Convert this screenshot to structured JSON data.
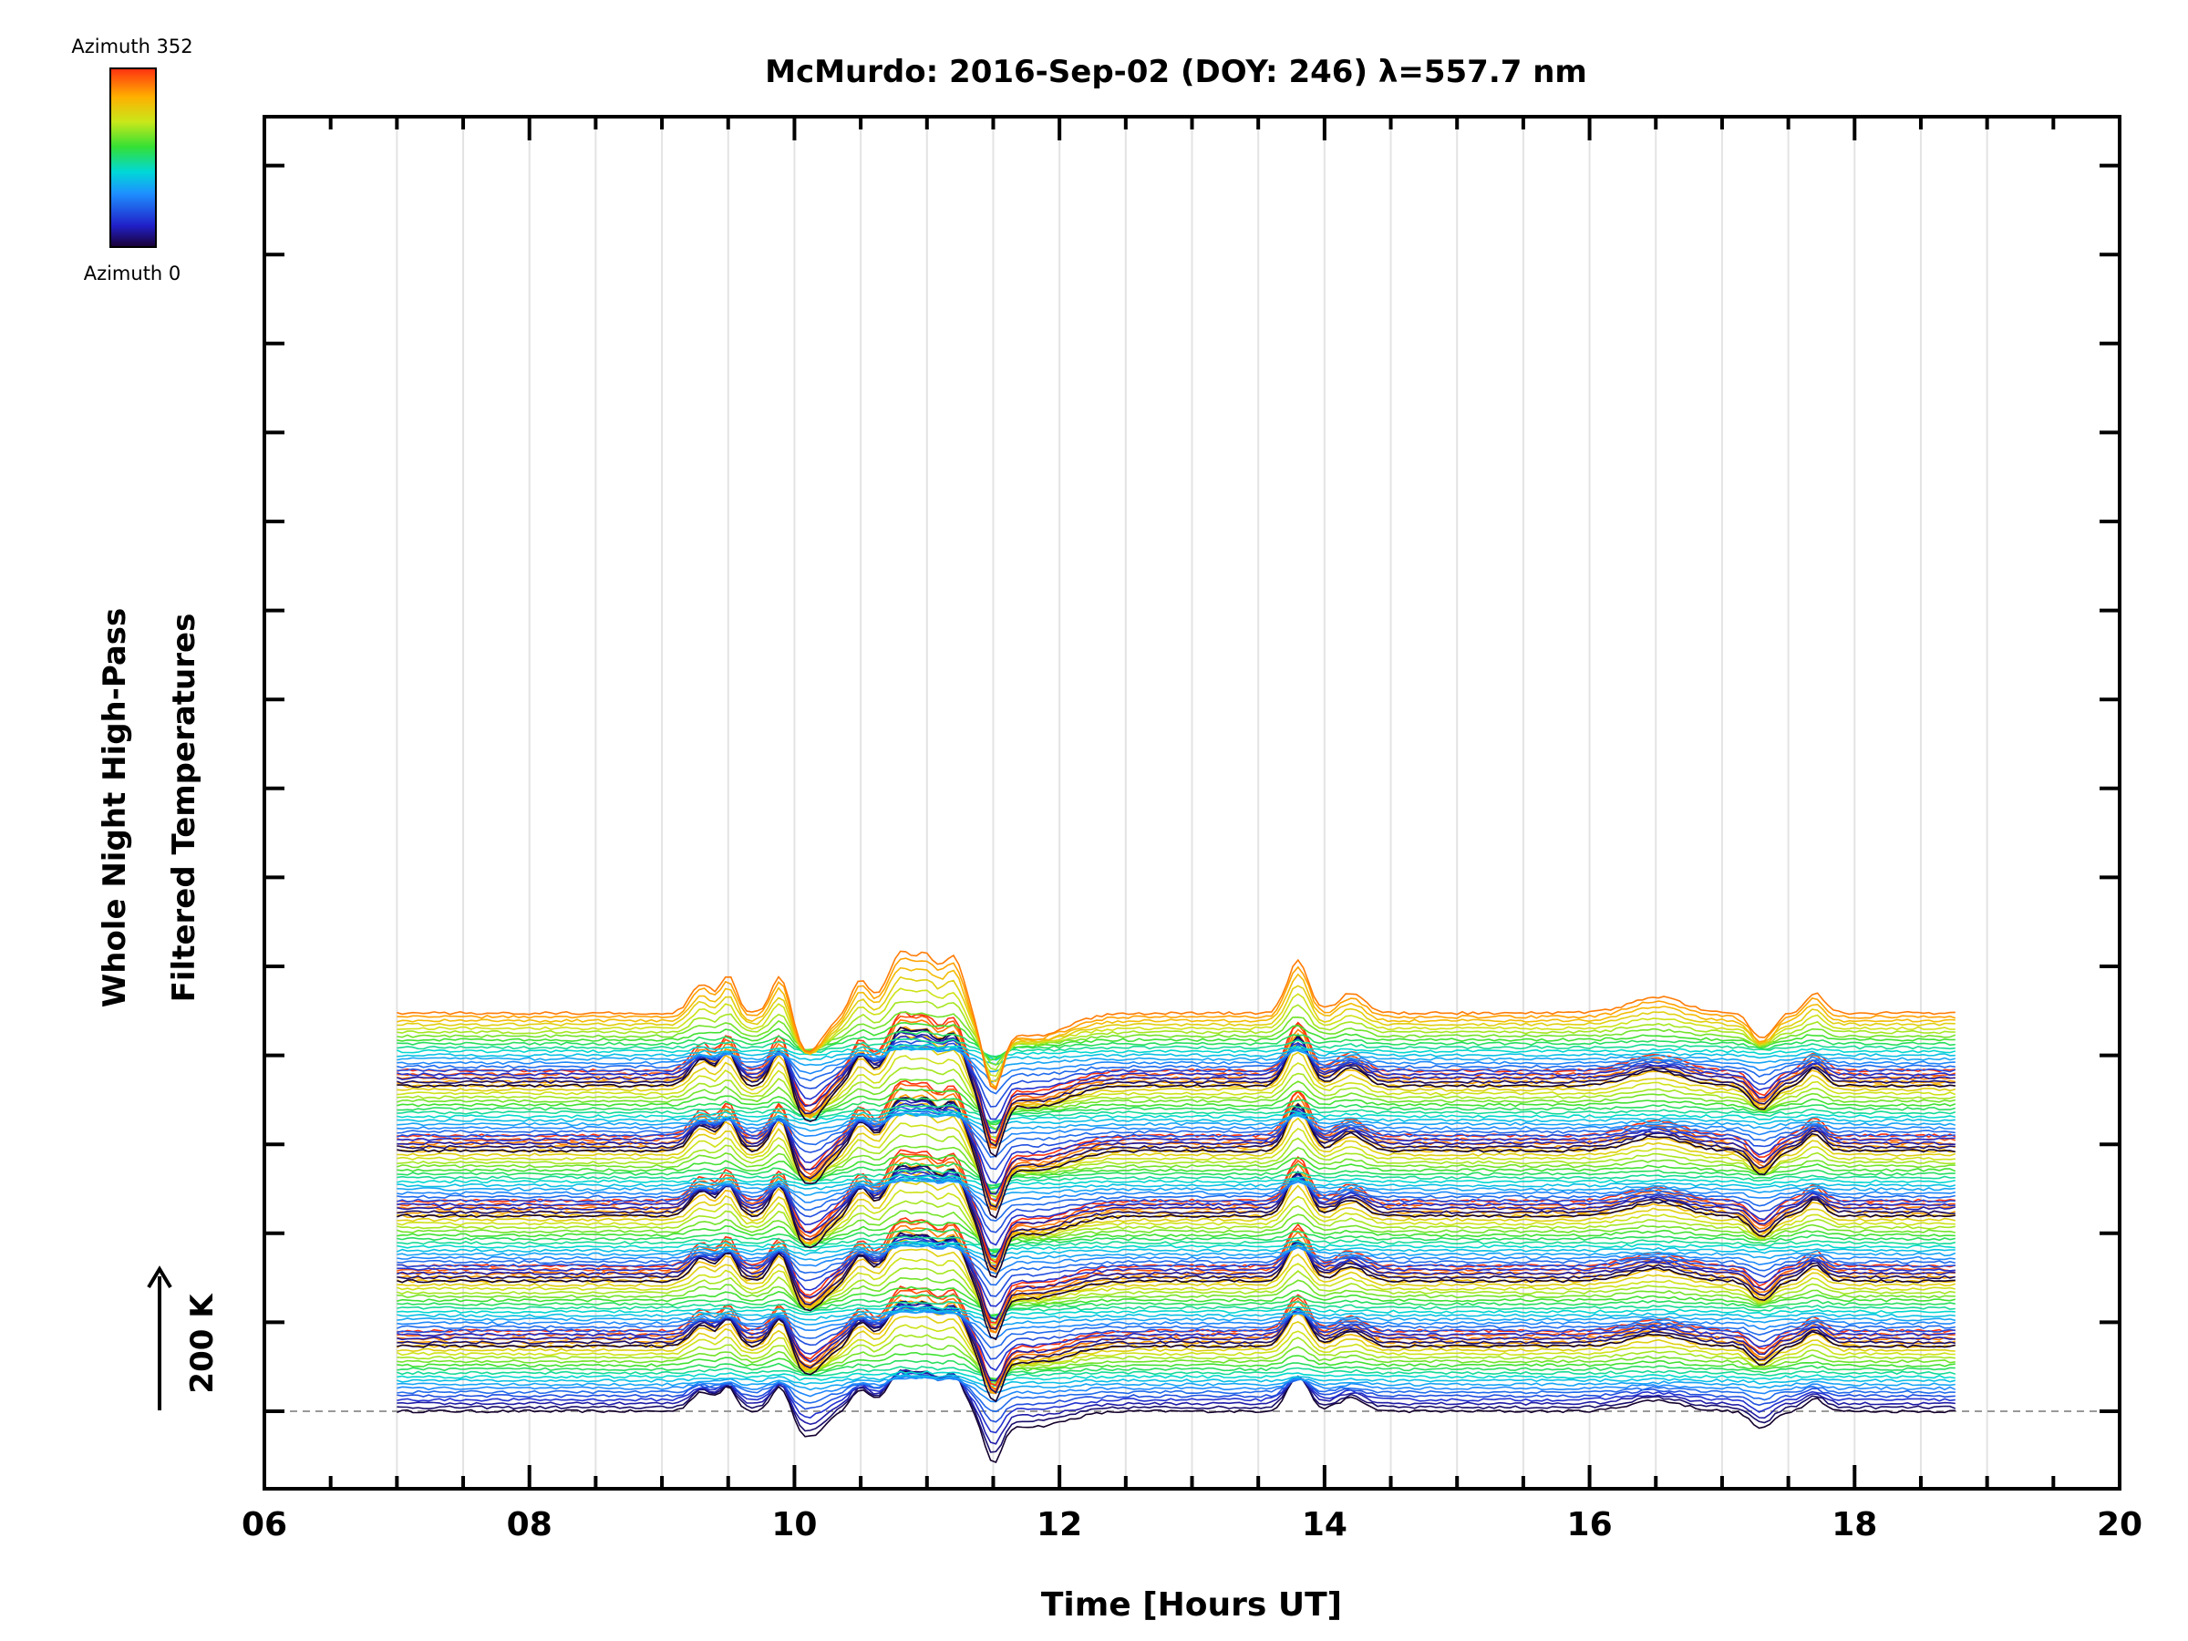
{
  "chart_data": {
    "type": "line",
    "title": "McMurdo: 2016-Sep-02 (DOY: 246) λ=557.7 nm",
    "xlabel": "Time [Hours UT]",
    "ylabel_line1": "Whole Night High-Pass",
    "ylabel_line2": "Filtered Temperatures",
    "xlim": [
      6,
      20
    ],
    "x_ticks": [
      "06",
      "08",
      "10",
      "12",
      "14",
      "16",
      "18",
      "20"
    ],
    "x_tick_values": [
      6,
      8,
      10,
      12,
      14,
      16,
      18,
      20
    ],
    "data_start_hour": 7.0,
    "data_end_hour": 18.78,
    "scale_bar_label": "200 K",
    "colorbar": {
      "top_label": "Azimuth 352",
      "bottom_label": "Azimuth 0",
      "min": 0,
      "max": 352
    },
    "n_traces": 130,
    "group_size": 22,
    "group_spacing_in_traces": 17,
    "notable_events_hours": [
      9.3,
      9.5,
      9.9,
      10.1,
      10.5,
      10.8,
      11.0,
      11.2,
      11.5,
      13.8,
      14.2,
      16.5,
      17.3,
      17.7
    ]
  }
}
